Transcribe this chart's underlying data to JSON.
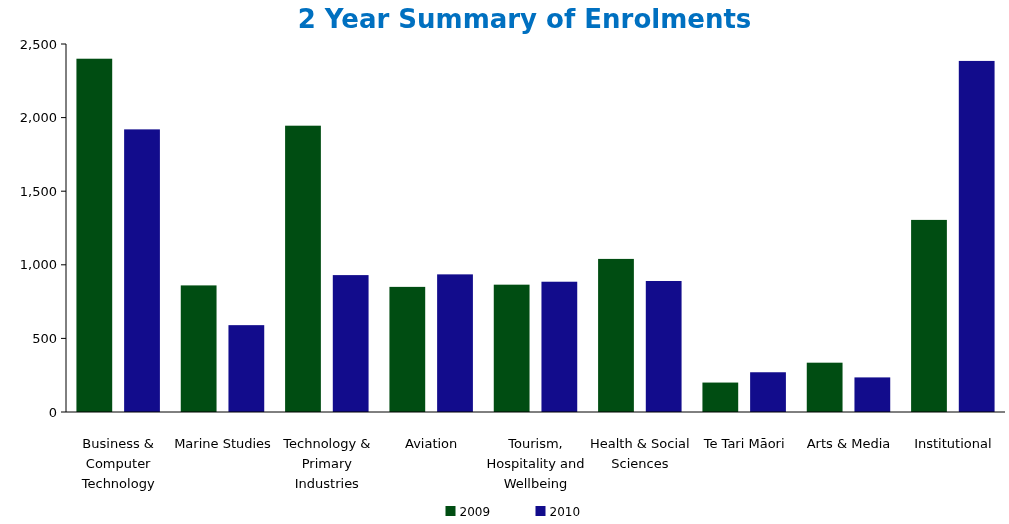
{
  "chart_data": {
    "type": "bar",
    "title": "2 Year Summary of Enrolments",
    "categories": [
      "Business & Computer Technology",
      "Marine Studies",
      "Technology & Primary Industries",
      "Aviation",
      "Tourism, Hospitality and Wellbeing",
      "Health & Social Sciences",
      "Te Tari Māori",
      "Arts & Media",
      "Institutional"
    ],
    "series": [
      {
        "name": "2009",
        "color": "#004d12",
        "values": [
          2400,
          860,
          1945,
          850,
          865,
          1040,
          200,
          335,
          1305
        ]
      },
      {
        "name": "2010",
        "color": "#120c8c",
        "values": [
          1920,
          590,
          930,
          935,
          885,
          890,
          270,
          235,
          2385
        ]
      }
    ],
    "ylim": [
      0,
      2500
    ],
    "yticks": [
      {
        "value": 0,
        "label": "0"
      },
      {
        "value": 500,
        "label": "500"
      },
      {
        "value": 1000,
        "label": "1,000"
      },
      {
        "value": 1500,
        "label": "1,500"
      },
      {
        "value": 2000,
        "label": "2,000"
      },
      {
        "value": 2500,
        "label": "2,500"
      }
    ],
    "grid": false,
    "legend": "bottom"
  }
}
